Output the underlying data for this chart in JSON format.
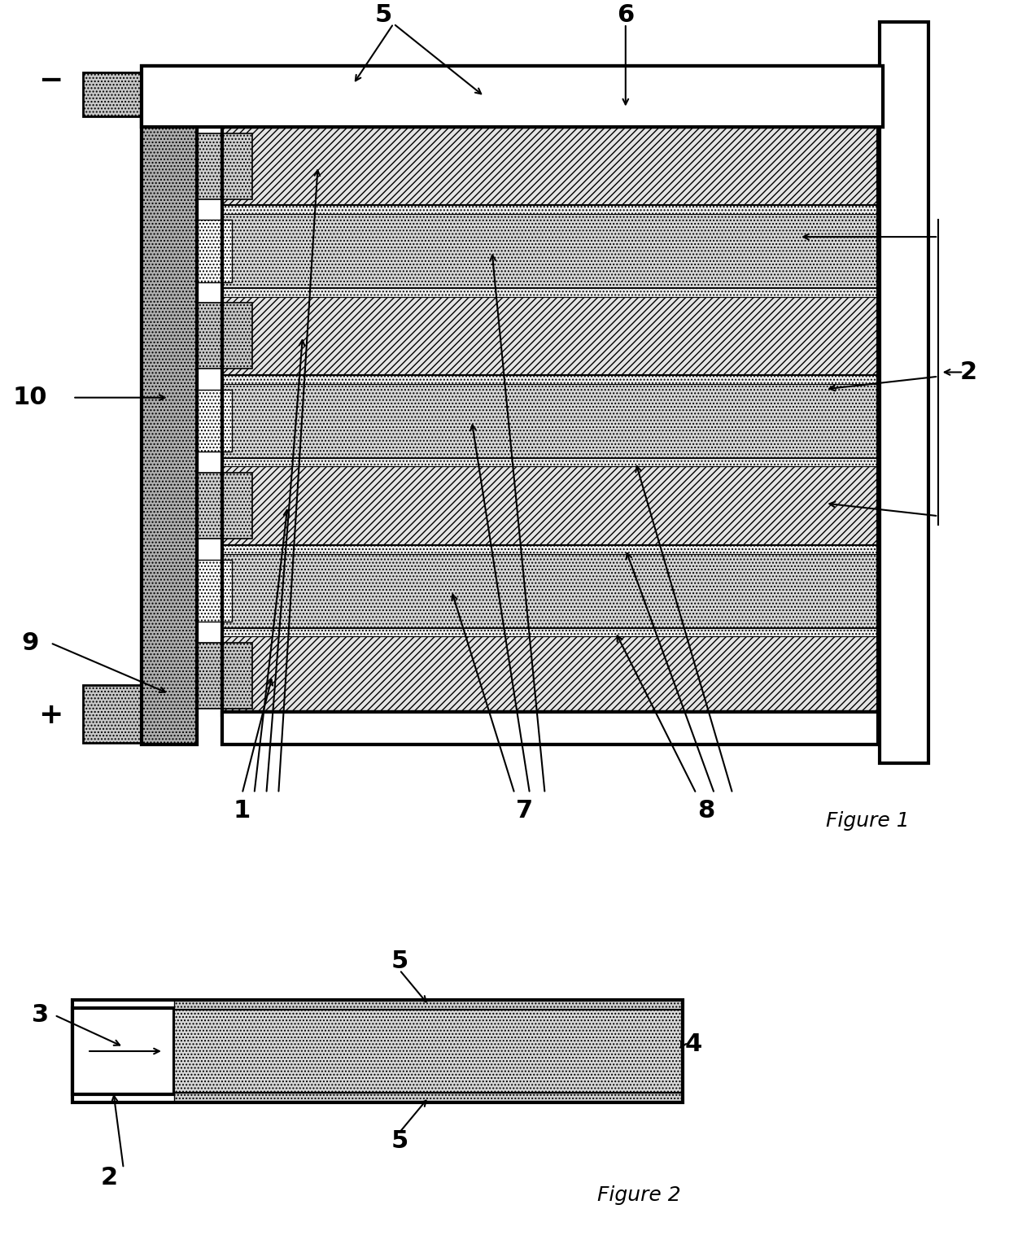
{
  "background": "#ffffff",
  "fig1_title": "Figure 1",
  "fig2_title": "Figure 2",
  "lw_heavy": 3.0,
  "lw_medium": 2.0,
  "lw_light": 1.2,
  "hatch_neg": "////",
  "hatch_pos": "....",
  "hatch_sep": "....",
  "hatch_bus": "....",
  "color_neg_face": "#e8e8e8",
  "color_pos_face": "#d0d0d0",
  "color_bus": "#b0b0b0",
  "color_white": "#ffffff",
  "color_black": "#000000",
  "color_gray_tab": "#c8c8c8",
  "color_light_gray": "#e0e0e0",
  "fontsize_label": 22,
  "fontsize_fig": 18
}
